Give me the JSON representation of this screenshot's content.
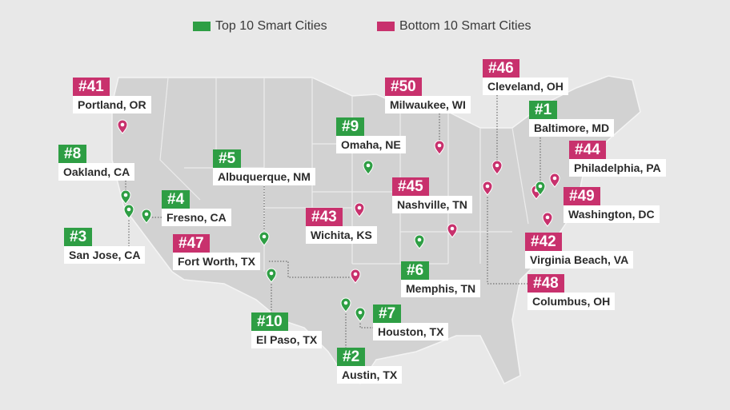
{
  "legend": [
    {
      "label": "Top 10 Smart Cities",
      "color": "#2e9e44"
    },
    {
      "label": "Bottom 10 Smart Cities",
      "color": "#c8316d"
    }
  ],
  "cities": [
    {
      "rank": "#41",
      "name": "Portland, OR",
      "group": 1
    },
    {
      "rank": "#50",
      "name": "Milwaukee, WI",
      "group": 1
    },
    {
      "rank": "#46",
      "name": "Cleveland, OH",
      "group": 1
    },
    {
      "rank": "#44",
      "name": "Philadelphia, PA",
      "group": 1
    },
    {
      "rank": "#49",
      "name": "Washington, DC",
      "group": 1
    },
    {
      "rank": "#45",
      "name": "Nashville, TN",
      "group": 1
    },
    {
      "rank": "#43",
      "name": "Wichita, KS",
      "group": 1
    },
    {
      "rank": "#42",
      "name": "Virginia Beach, VA",
      "group": 1
    },
    {
      "rank": "#47",
      "name": "Fort Worth, TX",
      "group": 1
    },
    {
      "rank": "#48",
      "name": "Columbus, OH",
      "group": 1
    },
    {
      "rank": "#1",
      "name": "Baltimore, MD",
      "group": 0
    },
    {
      "rank": "#9",
      "name": "Omaha, NE",
      "group": 0
    },
    {
      "rank": "#8",
      "name": "Oakland, CA",
      "group": 0
    },
    {
      "rank": "#5",
      "name": "Albuquerque, NM",
      "group": 0
    },
    {
      "rank": "#4",
      "name": "Fresno, CA",
      "group": 0
    },
    {
      "rank": "#3",
      "name": "San Jose, CA",
      "group": 0
    },
    {
      "rank": "#6",
      "name": "Memphis, TN",
      "group": 0
    },
    {
      "rank": "#10",
      "name": "El Paso, TX",
      "group": 0
    },
    {
      "rank": "#7",
      "name": "Houston, TX",
      "group": 0
    },
    {
      "rank": "#2",
      "name": "Austin, TX",
      "group": 0
    }
  ]
}
